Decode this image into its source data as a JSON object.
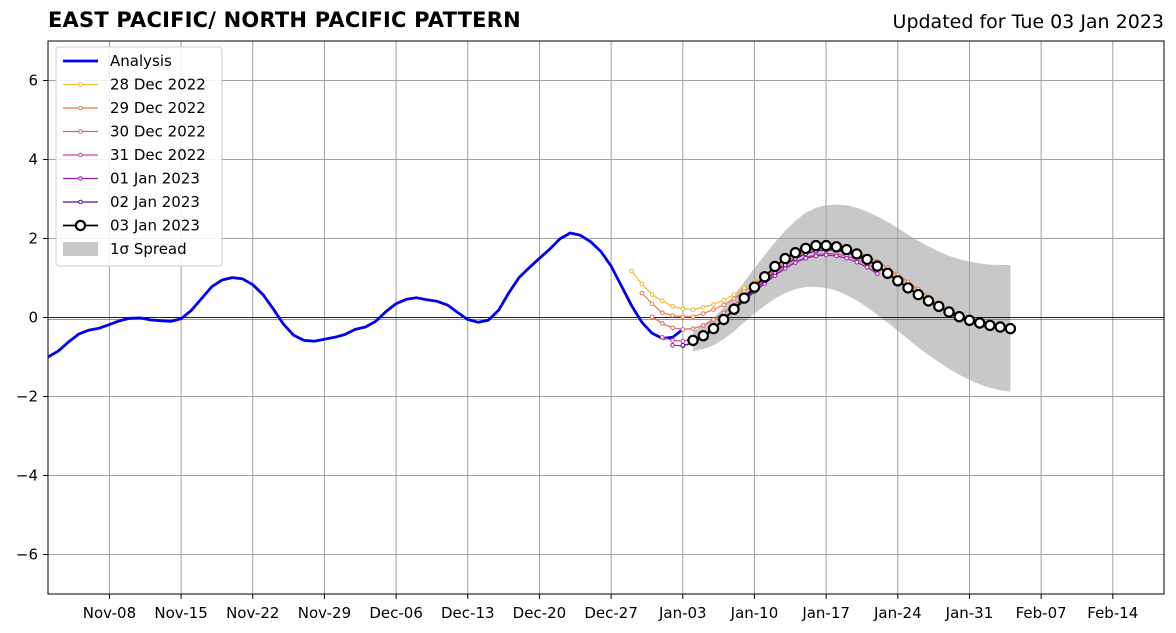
{
  "chart_data": {
    "type": "line",
    "title": "EAST PACIFIC/ NORTH PACIFIC PATTERN",
    "subtitle": "Updated for Tue 03 Jan 2023",
    "xlabel": "",
    "ylabel": "",
    "x_axis": "date",
    "xlim": [
      "2022-11-02",
      "2023-02-19"
    ],
    "ylim": [
      -7,
      7
    ],
    "x_ticks": [
      {
        "date": "2022-11-08",
        "label": "Nov-08"
      },
      {
        "date": "2022-11-15",
        "label": "Nov-15"
      },
      {
        "date": "2022-11-22",
        "label": "Nov-22"
      },
      {
        "date": "2022-11-29",
        "label": "Nov-29"
      },
      {
        "date": "2022-12-06",
        "label": "Dec-06"
      },
      {
        "date": "2022-12-13",
        "label": "Dec-13"
      },
      {
        "date": "2022-12-20",
        "label": "Dec-20"
      },
      {
        "date": "2022-12-27",
        "label": "Dec-27"
      },
      {
        "date": "2023-01-03",
        "label": "Jan-03"
      },
      {
        "date": "2023-01-10",
        "label": "Jan-10"
      },
      {
        "date": "2023-01-17",
        "label": "Jan-17"
      },
      {
        "date": "2023-01-24",
        "label": "Jan-24"
      },
      {
        "date": "2023-01-31",
        "label": "Jan-31"
      },
      {
        "date": "2023-02-07",
        "label": "Feb-07"
      },
      {
        "date": "2023-02-14",
        "label": "Feb-14"
      }
    ],
    "y_ticks": [
      {
        "value": -6,
        "label": "−6"
      },
      {
        "value": -4,
        "label": "−4"
      },
      {
        "value": -2,
        "label": "−2"
      },
      {
        "value": 0,
        "label": "0"
      },
      {
        "value": 2,
        "label": "2"
      },
      {
        "value": 4,
        "label": "4"
      },
      {
        "value": 6,
        "label": "6"
      }
    ],
    "grid": true,
    "zero_line": true,
    "legend": {
      "placement": "top-left"
    },
    "analysis": {
      "name": "Analysis",
      "color": "#0000ee",
      "points": [
        [
          "2022-11-02",
          -1.0
        ],
        [
          "2022-11-03",
          -0.85
        ],
        [
          "2022-11-04",
          -0.62
        ],
        [
          "2022-11-05",
          -0.42
        ],
        [
          "2022-11-06",
          -0.32
        ],
        [
          "2022-11-07",
          -0.27
        ],
        [
          "2022-11-08",
          -0.18
        ],
        [
          "2022-11-09",
          -0.08
        ],
        [
          "2022-11-10",
          -0.02
        ],
        [
          "2022-11-11",
          -0.01
        ],
        [
          "2022-11-12",
          -0.06
        ],
        [
          "2022-11-13",
          -0.08
        ],
        [
          "2022-11-14",
          -0.1
        ],
        [
          "2022-11-15",
          -0.03
        ],
        [
          "2022-11-16",
          0.18
        ],
        [
          "2022-11-17",
          0.48
        ],
        [
          "2022-11-18",
          0.78
        ],
        [
          "2022-11-19",
          0.95
        ],
        [
          "2022-11-20",
          1.01
        ],
        [
          "2022-11-21",
          0.98
        ],
        [
          "2022-11-22",
          0.83
        ],
        [
          "2022-11-23",
          0.58
        ],
        [
          "2022-11-24",
          0.22
        ],
        [
          "2022-11-25",
          -0.17
        ],
        [
          "2022-11-26",
          -0.45
        ],
        [
          "2022-11-27",
          -0.58
        ],
        [
          "2022-11-28",
          -0.6
        ],
        [
          "2022-11-29",
          -0.55
        ],
        [
          "2022-11-30",
          -0.5
        ],
        [
          "2022-12-01",
          -0.43
        ],
        [
          "2022-12-02",
          -0.3
        ],
        [
          "2022-12-03",
          -0.24
        ],
        [
          "2022-12-04",
          -0.1
        ],
        [
          "2022-12-05",
          0.15
        ],
        [
          "2022-12-06",
          0.35
        ],
        [
          "2022-12-07",
          0.46
        ],
        [
          "2022-12-08",
          0.5
        ],
        [
          "2022-12-09",
          0.45
        ],
        [
          "2022-12-10",
          0.41
        ],
        [
          "2022-12-11",
          0.32
        ],
        [
          "2022-12-12",
          0.13
        ],
        [
          "2022-12-13",
          -0.05
        ],
        [
          "2022-12-14",
          -0.12
        ],
        [
          "2022-12-15",
          -0.07
        ],
        [
          "2022-12-16",
          0.18
        ],
        [
          "2022-12-17",
          0.62
        ],
        [
          "2022-12-18",
          1.01
        ],
        [
          "2022-12-19",
          1.26
        ],
        [
          "2022-12-20",
          1.5
        ],
        [
          "2022-12-21",
          1.73
        ],
        [
          "2022-12-22",
          1.99
        ],
        [
          "2022-12-23",
          2.14
        ],
        [
          "2022-12-24",
          2.08
        ],
        [
          "2022-12-25",
          1.92
        ],
        [
          "2022-12-26",
          1.67
        ],
        [
          "2022-12-27",
          1.3
        ],
        [
          "2022-12-28",
          0.8
        ],
        [
          "2022-12-29",
          0.3
        ],
        [
          "2022-12-30",
          -0.12
        ],
        [
          "2022-12-31",
          -0.4
        ],
        [
          "2023-01-01",
          -0.53
        ],
        [
          "2023-01-02",
          -0.5
        ],
        [
          "2023-01-03",
          -0.3
        ]
      ]
    },
    "forecasts": [
      {
        "name": "28 Dec 2022",
        "color": "#f5b82e",
        "values": [
          1.18,
          0.85,
          0.58,
          0.42,
          0.28,
          0.22,
          0.2,
          0.26,
          0.33,
          0.44,
          0.58,
          0.74,
          0.9,
          1.05,
          1.23,
          1.4,
          1.54,
          1.65,
          1.71,
          1.73,
          1.72,
          1.67,
          1.59,
          1.48,
          1.34,
          1.18,
          1.02,
          0.85,
          0.68,
          0.5,
          0.32
        ]
      },
      {
        "name": "29 Dec 2022",
        "color": "#ee7b47",
        "values": [
          0.62,
          0.35,
          0.12,
          0.05,
          0.02,
          0.02,
          0.1,
          0.2,
          0.32,
          0.48,
          0.66,
          0.84,
          1.02,
          1.22,
          1.4,
          1.55,
          1.66,
          1.74,
          1.78,
          1.78,
          1.74,
          1.66,
          1.55,
          1.42,
          1.26,
          1.08,
          0.9,
          0.72,
          0.53,
          0.33
        ]
      },
      {
        "name": "30 Dec 2022",
        "color": "#e06363",
        "values": [
          0.02,
          -0.15,
          -0.26,
          -0.3,
          -0.28,
          -0.2,
          -0.05,
          0.12,
          0.32,
          0.54,
          0.76,
          0.98,
          1.18,
          1.36,
          1.51,
          1.62,
          1.69,
          1.72,
          1.71,
          1.66,
          1.58,
          1.46,
          1.32,
          1.16
        ]
      },
      {
        "name": "31 Dec 2022",
        "color": "#c4489c",
        "values": [
          -0.5,
          -0.58,
          -0.6,
          -0.55,
          -0.45,
          -0.28,
          -0.06,
          0.18,
          0.42,
          0.66,
          0.88,
          1.08,
          1.26,
          1.41,
          1.52,
          1.59,
          1.62,
          1.61,
          1.56,
          1.47,
          1.35,
          1.21
        ]
      },
      {
        "name": "01 Jan 2023",
        "color": "#9c1ba8",
        "values": [
          -0.7,
          -0.72,
          -0.65,
          -0.5,
          -0.3,
          -0.06,
          0.18,
          0.42,
          0.65,
          0.86,
          1.06,
          1.24,
          1.39,
          1.5,
          1.56,
          1.58,
          1.56,
          1.5,
          1.4,
          1.27,
          1.11
        ]
      },
      {
        "name": "02 Jan 2023",
        "color": "#5a0aa0",
        "values": [
          -0.7,
          -0.65,
          -0.5,
          -0.3,
          -0.06,
          0.2,
          0.45,
          0.7,
          0.93,
          1.14,
          1.33,
          1.49,
          1.61,
          1.68,
          1.71,
          1.7,
          1.64,
          1.55,
          1.42
        ]
      },
      {
        "name": "03 Jan 2023",
        "color": "#000000",
        "values": [
          -0.58,
          -0.46,
          -0.28,
          -0.05,
          0.21,
          0.49,
          0.77,
          1.03,
          1.29,
          1.49,
          1.64,
          1.75,
          1.82,
          1.82,
          1.79,
          1.72,
          1.61,
          1.47,
          1.3,
          1.12,
          0.93,
          0.75,
          0.58,
          0.42,
          0.28,
          0.14,
          0.02,
          -0.07,
          -0.14,
          -0.2,
          -0.24,
          -0.28
        ]
      }
    ],
    "forecast_start_dates": [
      "2022-12-29",
      "2022-12-30",
      "2022-12-31",
      "2023-01-01",
      "2023-01-02",
      "2023-01-03",
      "2023-01-04"
    ],
    "spread": {
      "name": "1σ Spread",
      "color": "#c8c8c8",
      "start_date": "2023-01-04",
      "upper": [
        -0.35,
        -0.2,
        0.0,
        0.25,
        0.55,
        0.9,
        1.25,
        1.58,
        1.9,
        2.2,
        2.45,
        2.65,
        2.78,
        2.84,
        2.86,
        2.84,
        2.78,
        2.68,
        2.56,
        2.42,
        2.26,
        2.1,
        1.94,
        1.8,
        1.67,
        1.56,
        1.48,
        1.41,
        1.37,
        1.34,
        1.33,
        1.33
      ],
      "lower": [
        -0.85,
        -0.8,
        -0.7,
        -0.55,
        -0.35,
        -0.12,
        0.1,
        0.3,
        0.48,
        0.62,
        0.72,
        0.77,
        0.78,
        0.75,
        0.68,
        0.57,
        0.43,
        0.26,
        0.07,
        -0.13,
        -0.34,
        -0.55,
        -0.76,
        -0.95,
        -1.13,
        -1.3,
        -1.45,
        -1.58,
        -1.69,
        -1.78,
        -1.84,
        -1.88
      ]
    }
  }
}
